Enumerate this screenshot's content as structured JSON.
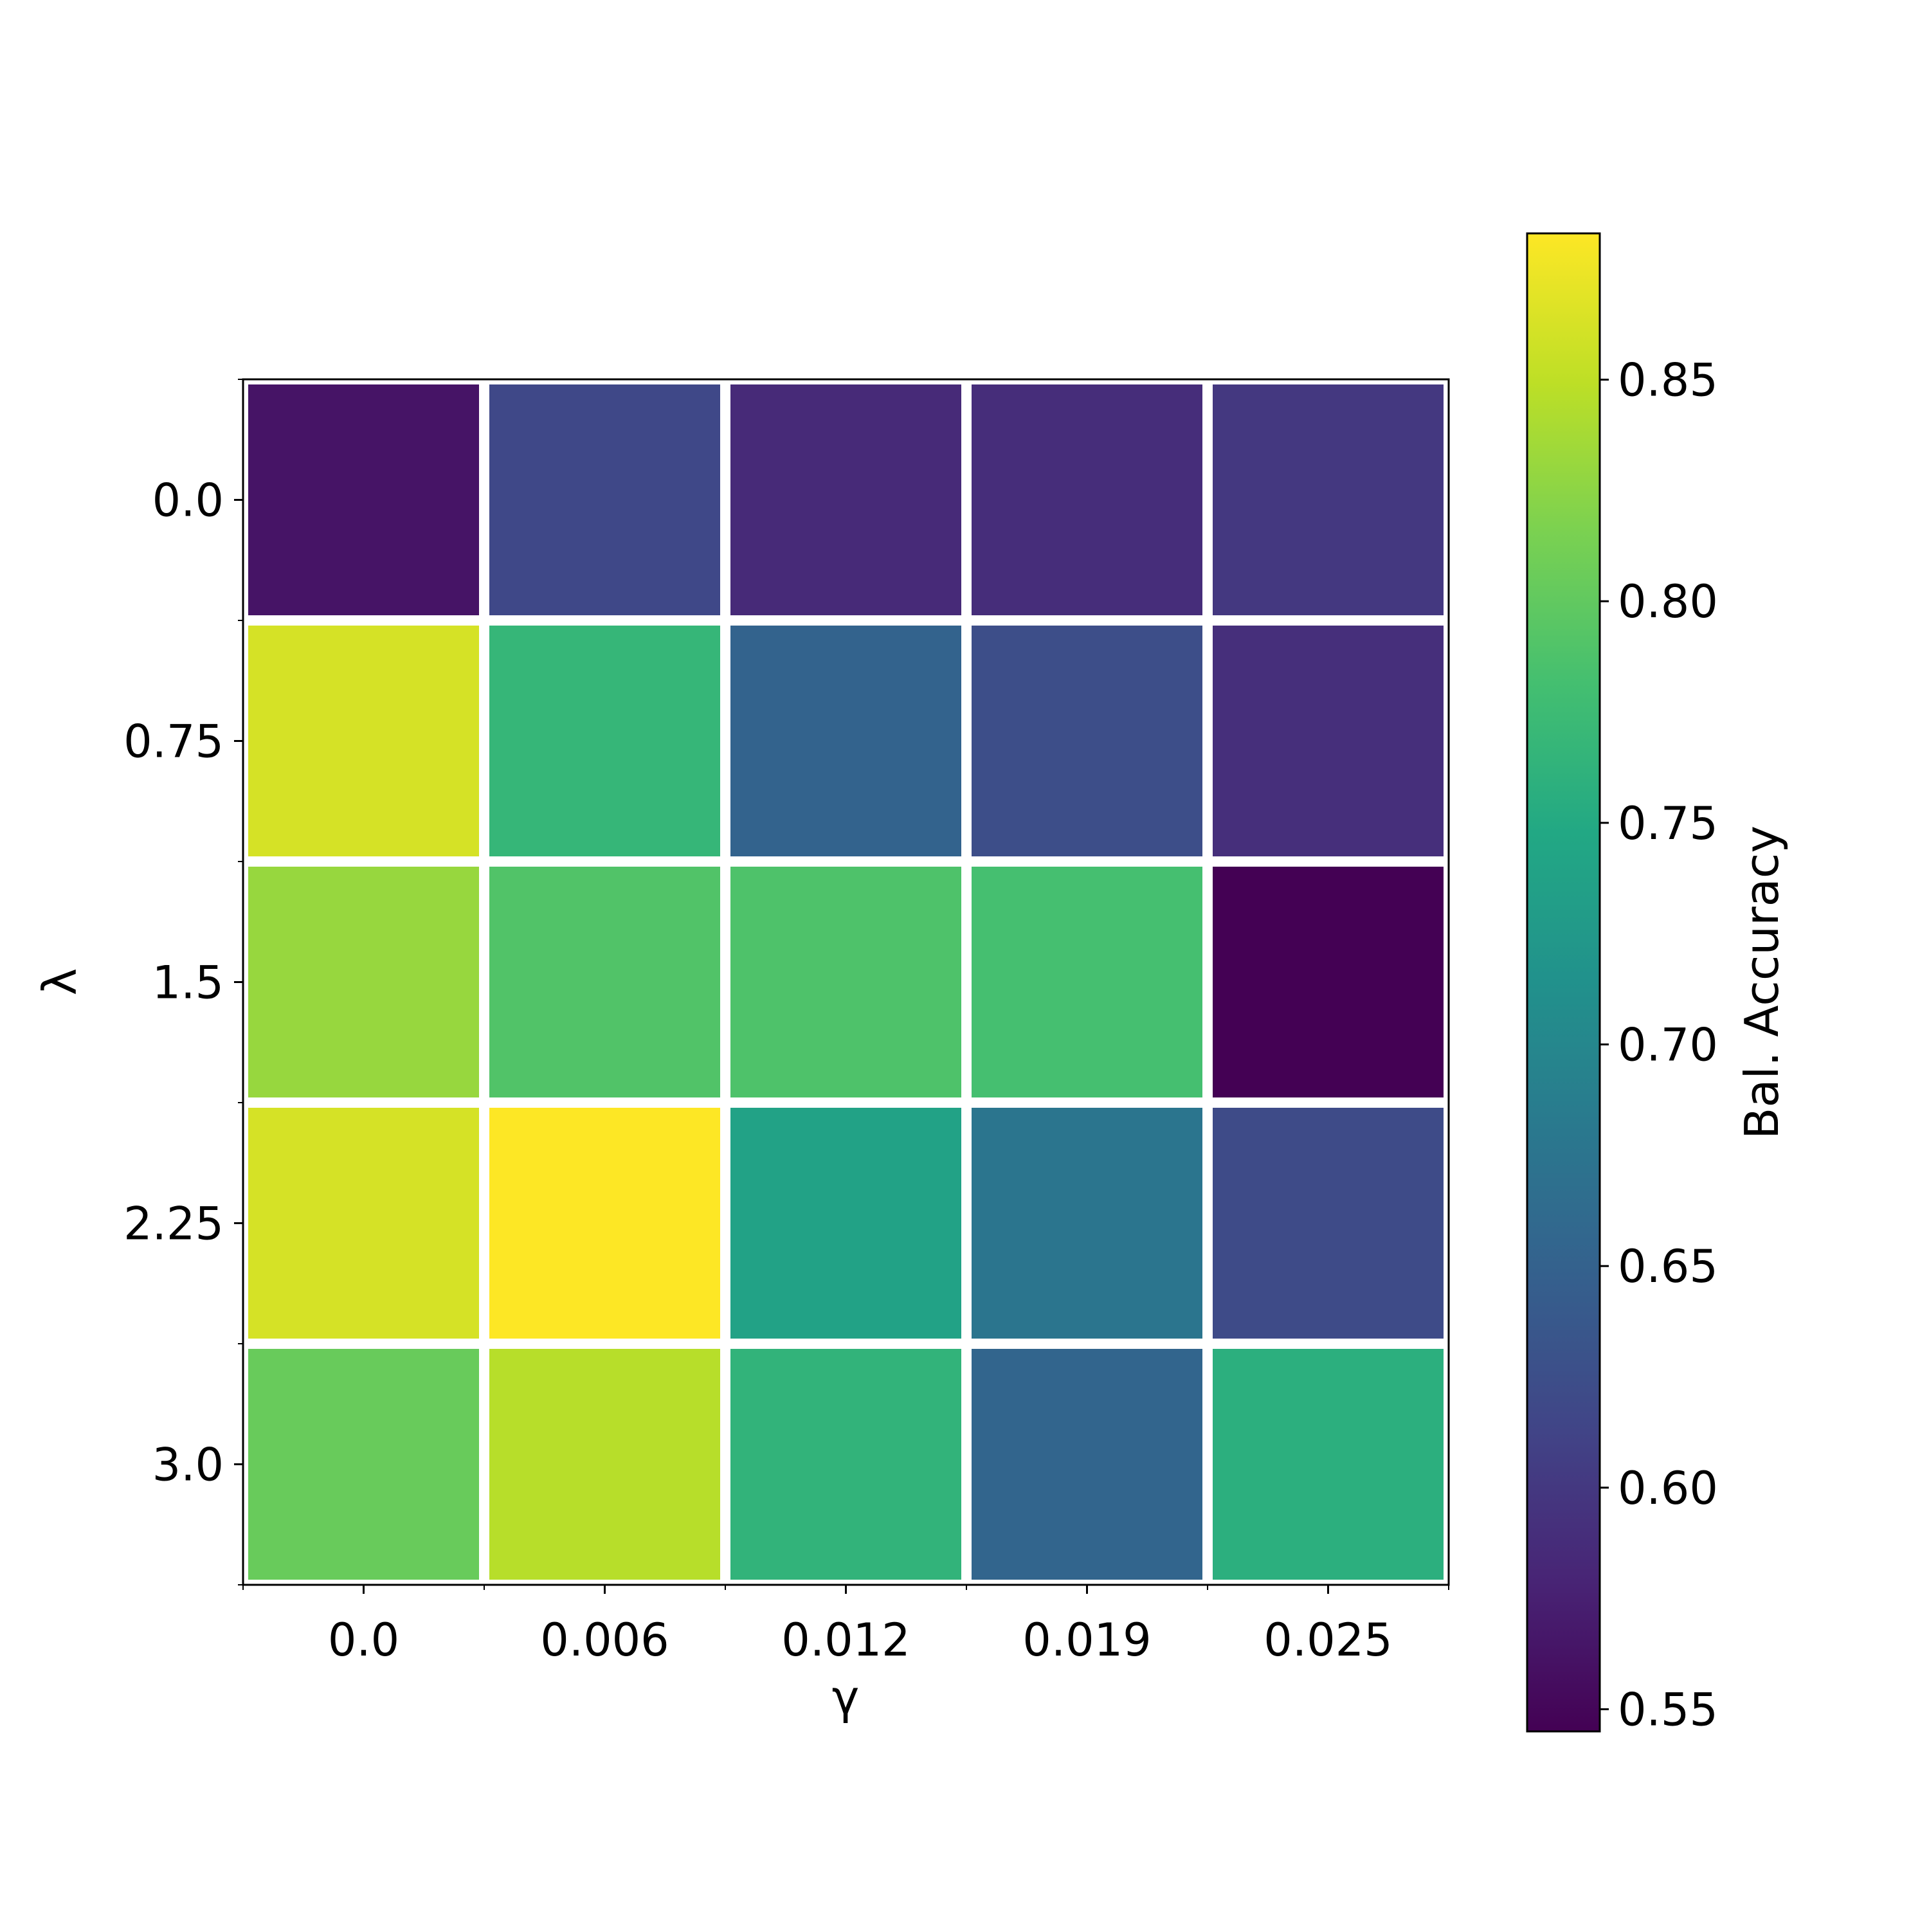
{
  "chart_data": {
    "type": "heatmap",
    "title": "",
    "xlabel": "γ",
    "ylabel": "λ",
    "x_categories": [
      "0.0",
      "0.006",
      "0.012",
      "0.019",
      "0.025"
    ],
    "y_categories": [
      "0.0",
      "0.75",
      "1.5",
      "2.25",
      "3.0"
    ],
    "values": [
      [
        0.563,
        0.617,
        0.585,
        0.588,
        0.6
      ],
      [
        0.862,
        0.768,
        0.652,
        0.625,
        0.59
      ],
      [
        0.83,
        0.79,
        0.788,
        0.782,
        0.545
      ],
      [
        0.862,
        0.883,
        0.739,
        0.676,
        0.621
      ],
      [
        0.804,
        0.846,
        0.764,
        0.655,
        0.758
      ]
    ],
    "colorbar": {
      "label": "Bal. Accuracy",
      "range": [
        0.545,
        0.883
      ],
      "ticks": [
        "0.55",
        "0.60",
        "0.65",
        "0.70",
        "0.75",
        "0.80",
        "0.85"
      ],
      "colormap": "viridis"
    },
    "cell_borders": "white",
    "grid": false,
    "legend": "none"
  }
}
